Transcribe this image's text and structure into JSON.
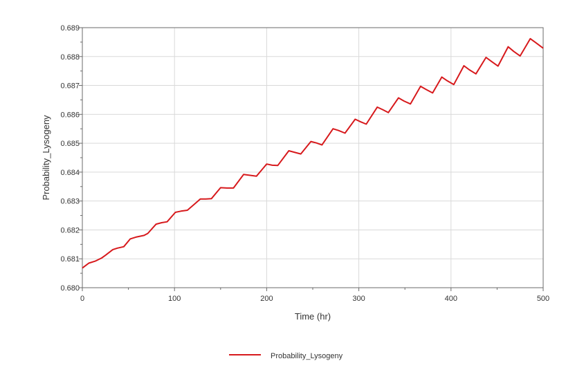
{
  "chart_data": {
    "type": "line",
    "xlabel": "Time (hr)",
    "ylabel": "Probability_Lysogeny",
    "xlim": [
      0,
      500
    ],
    "ylim": [
      0.68,
      0.689
    ],
    "xticks": [
      "0",
      "100",
      "200",
      "300",
      "400",
      "500"
    ],
    "yticks": [
      "0.680",
      "0.681",
      "0.682",
      "0.683",
      "0.684",
      "0.685",
      "0.686",
      "0.687",
      "0.688",
      "0.689"
    ],
    "grid": true,
    "legend_position": "bottom",
    "series": [
      {
        "name": "Probability_Lysogeny",
        "color": "#d7191c",
        "points": [
          [
            0,
            0.68068
          ],
          [
            7,
            0.68085
          ],
          [
            14,
            0.68092
          ],
          [
            21,
            0.68103
          ],
          [
            25,
            0.68112
          ],
          [
            33,
            0.68132
          ],
          [
            38,
            0.68137
          ],
          [
            45,
            0.68142
          ],
          [
            52,
            0.68169
          ],
          [
            58,
            0.68175
          ],
          [
            67,
            0.68181
          ],
          [
            71,
            0.68188
          ],
          [
            80,
            0.6822
          ],
          [
            86,
            0.68225
          ],
          [
            92,
            0.68228
          ],
          [
            101,
            0.68261
          ],
          [
            107,
            0.68265
          ],
          [
            114,
            0.68268
          ],
          [
            122,
            0.6829
          ],
          [
            128,
            0.68307
          ],
          [
            134,
            0.68307
          ],
          [
            140,
            0.68308
          ],
          [
            150,
            0.68346
          ],
          [
            157,
            0.68345
          ],
          [
            164,
            0.68345
          ],
          [
            175,
            0.68392
          ],
          [
            182,
            0.68389
          ],
          [
            189,
            0.68386
          ],
          [
            200,
            0.68428
          ],
          [
            206,
            0.68424
          ],
          [
            212,
            0.68423
          ],
          [
            224,
            0.68474
          ],
          [
            231,
            0.68468
          ],
          [
            237,
            0.68463
          ],
          [
            248,
            0.68506
          ],
          [
            254,
            0.68501
          ],
          [
            260,
            0.68494
          ],
          [
            272,
            0.6855
          ],
          [
            278,
            0.68544
          ],
          [
            285,
            0.68535
          ],
          [
            296,
            0.68583
          ],
          [
            302,
            0.68574
          ],
          [
            308,
            0.68566
          ],
          [
            320,
            0.68625
          ],
          [
            326,
            0.68616
          ],
          [
            332,
            0.68606
          ],
          [
            343,
            0.68657
          ],
          [
            349,
            0.68646
          ],
          [
            356,
            0.68636
          ],
          [
            367,
            0.68697
          ],
          [
            373,
            0.68686
          ],
          [
            380,
            0.68674
          ],
          [
            390,
            0.68729
          ],
          [
            396,
            0.68716
          ],
          [
            403,
            0.68703
          ],
          [
            414,
            0.68768
          ],
          [
            420,
            0.68754
          ],
          [
            427,
            0.6874
          ],
          [
            438,
            0.68797
          ],
          [
            444,
            0.68783
          ],
          [
            451,
            0.68767
          ],
          [
            462,
            0.68834
          ],
          [
            468,
            0.68818
          ],
          [
            475,
            0.68802
          ],
          [
            486,
            0.68862
          ],
          [
            492,
            0.68848
          ],
          [
            500,
            0.68829
          ]
        ]
      }
    ]
  }
}
